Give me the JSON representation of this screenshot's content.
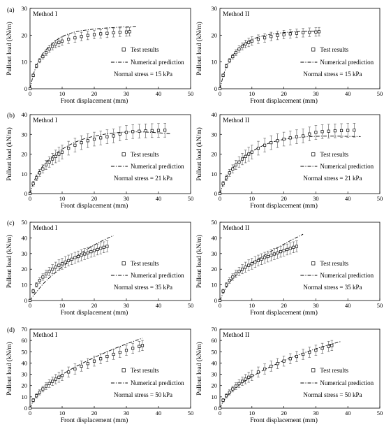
{
  "chart_data": [
    {
      "type": "scatter",
      "panel_label": "(a)",
      "title": "Method I",
      "xlabel": "Front displacement (mm)",
      "ylabel": "Pullout load (kN/m)",
      "xlim": [
        0,
        50
      ],
      "ylim": [
        0,
        30
      ],
      "xticks": [
        0,
        10,
        20,
        30,
        40,
        50
      ],
      "yticks": [
        0,
        10,
        20,
        30
      ],
      "legend": [
        "Test results",
        "Numerical prediction"
      ],
      "legend_position": "right",
      "annotation": "Normal stress = 15 kPa",
      "test_results": {
        "x": [
          0,
          1,
          2,
          3,
          4,
          5,
          6,
          7,
          8,
          9,
          10,
          12,
          14,
          16,
          18,
          20,
          22,
          24,
          26,
          28,
          30,
          31
        ],
        "y": [
          0,
          5,
          8.5,
          10.5,
          12,
          13.5,
          14.8,
          15.8,
          16.7,
          17.3,
          17.8,
          18.5,
          19,
          19.5,
          19.9,
          20.2,
          20.5,
          20.7,
          20.9,
          21.1,
          21.2,
          21.3
        ],
        "error": 1.6
      },
      "numerical_prediction": {
        "x": [
          0,
          1,
          2,
          3,
          4,
          6,
          8,
          10,
          12,
          14,
          16,
          18,
          20,
          24,
          28,
          31,
          33
        ],
        "y": [
          0,
          5.2,
          8.8,
          11.2,
          13.2,
          16,
          18,
          19.5,
          20.5,
          21.2,
          21.7,
          22,
          22.3,
          22.7,
          23,
          23.2,
          23.3
        ]
      }
    },
    {
      "type": "scatter",
      "panel_label": "",
      "title": "Method II",
      "xlabel": "Front displacement (mm)",
      "ylabel": "Pullout load (kN/m)",
      "xlim": [
        0,
        50
      ],
      "ylim": [
        0,
        30
      ],
      "xticks": [
        0,
        10,
        20,
        30,
        40,
        50
      ],
      "yticks": [
        0,
        10,
        20,
        30
      ],
      "legend": [
        "Test results",
        "Numerical prediction"
      ],
      "legend_position": "right",
      "annotation": "Normal stress = 15 kPa",
      "test_results": {
        "x": [
          0,
          1,
          2,
          3,
          4,
          5,
          6,
          7,
          8,
          9,
          10,
          12,
          14,
          16,
          18,
          20,
          22,
          24,
          26,
          28,
          30,
          31
        ],
        "y": [
          0,
          5,
          8.5,
          10.5,
          12,
          13.5,
          14.8,
          15.8,
          16.7,
          17.3,
          17.8,
          18.5,
          19,
          19.5,
          19.9,
          20.2,
          20.5,
          20.7,
          20.9,
          21.1,
          21.2,
          21.3
        ],
        "error": 1.6
      },
      "numerical_prediction": {
        "x": [
          0,
          1,
          2,
          3,
          4,
          6,
          8,
          10,
          12,
          14,
          16,
          18,
          20,
          24,
          28,
          31
        ],
        "y": [
          0,
          4.8,
          8.2,
          10.6,
          12.5,
          15.2,
          17.1,
          18.4,
          19.3,
          19.9,
          20.4,
          20.7,
          21,
          21.3,
          21.5,
          21.6
        ]
      }
    },
    {
      "type": "scatter",
      "panel_label": "(b)",
      "title": "Method I",
      "xlabel": "Front displacement (mm)",
      "ylabel": "Pullout load (kN/m)",
      "xlim": [
        0,
        50
      ],
      "ylim": [
        0,
        40
      ],
      "xticks": [
        0,
        10,
        20,
        30,
        40,
        50
      ],
      "yticks": [
        0,
        10,
        20,
        30,
        40
      ],
      "legend": [
        "Test results",
        "Numerical prediction"
      ],
      "legend_position": "right",
      "annotation": "Normal stress = 21 kPa",
      "test_results": {
        "x": [
          0,
          1,
          2,
          3,
          4,
          5,
          6,
          7,
          8,
          9,
          10,
          12,
          14,
          16,
          18,
          20,
          22,
          24,
          26,
          28,
          30,
          32,
          34,
          36,
          38,
          40,
          42
        ],
        "y": [
          0,
          5,
          8,
          10.5,
          12.5,
          14.5,
          16,
          17.5,
          18.8,
          20,
          21,
          23,
          24.5,
          25.8,
          26.8,
          27.6,
          28.2,
          28.8,
          29.2,
          30.2,
          31,
          31.4,
          31.6,
          31.8,
          31.9,
          32,
          32.1
        ],
        "error": 3.5
      },
      "numerical_prediction": {
        "x": [
          0,
          1,
          2,
          3,
          4,
          6,
          8,
          10,
          12,
          14,
          16,
          18,
          20,
          24,
          28,
          32,
          36,
          40,
          44
        ],
        "y": [
          0,
          5.5,
          9,
          11.8,
          14,
          17.5,
          20.3,
          22.5,
          24.4,
          26,
          27.3,
          28.3,
          29.1,
          30.3,
          31,
          31.3,
          31.2,
          30.8,
          30.3
        ]
      }
    },
    {
      "type": "scatter",
      "panel_label": "",
      "title": "Method II",
      "xlabel": "Front displacement (mm)",
      "ylabel": "Pullout load (kN/m)",
      "xlim": [
        0,
        50
      ],
      "ylim": [
        0,
        40
      ],
      "xticks": [
        0,
        10,
        20,
        30,
        40,
        50
      ],
      "yticks": [
        0,
        10,
        20,
        30,
        40
      ],
      "legend": [
        "Test results",
        "Numerical prediction"
      ],
      "legend_position": "right",
      "annotation": "Normal stress = 21 kPa",
      "test_results": {
        "x": [
          0,
          1,
          2,
          3,
          4,
          5,
          6,
          7,
          8,
          9,
          10,
          12,
          14,
          16,
          18,
          20,
          22,
          24,
          26,
          28,
          30,
          32,
          34,
          36,
          38,
          40,
          42
        ],
        "y": [
          0,
          5,
          8,
          10.5,
          12.5,
          14.5,
          16,
          17.5,
          18.8,
          20,
          21,
          23,
          24.5,
          25.8,
          26.8,
          27.6,
          28.2,
          28.8,
          29.2,
          30.2,
          31,
          31.4,
          31.6,
          31.8,
          31.9,
          32,
          32.1
        ],
        "error": 3.5
      },
      "numerical_prediction": {
        "x": [
          0,
          1,
          2,
          3,
          4,
          6,
          8,
          10,
          12,
          14,
          16,
          18,
          20,
          24,
          28,
          32,
          36,
          40,
          44
        ],
        "y": [
          0,
          5,
          8.2,
          10.8,
          13,
          16.4,
          19.2,
          21.4,
          23.2,
          24.7,
          25.9,
          26.8,
          27.5,
          28.4,
          28.9,
          29.1,
          29.1,
          29,
          28.9
        ]
      }
    },
    {
      "type": "scatter",
      "panel_label": "(c)",
      "title": "Method I",
      "xlabel": "Front displacement (mm)",
      "ylabel": "Pullout load (kN/m)",
      "xlim": [
        0,
        50
      ],
      "ylim": [
        0,
        50
      ],
      "xticks": [
        0,
        10,
        20,
        30,
        40,
        50
      ],
      "yticks": [
        0,
        10,
        20,
        30,
        40,
        50
      ],
      "legend": [
        "Test results",
        "Numerical prediction"
      ],
      "legend_position": "right",
      "annotation": "Normal stress = 35 kPa",
      "test_results": {
        "x": [
          0,
          1,
          2,
          3,
          4,
          5,
          6,
          7,
          8,
          9,
          10,
          11,
          12,
          13,
          14,
          15,
          16,
          17,
          18,
          19,
          20,
          21,
          22,
          23,
          24
        ],
        "y": [
          0,
          6,
          10,
          12.8,
          15,
          17,
          18.6,
          20,
          21.3,
          22.5,
          23.5,
          24.6,
          25.5,
          26.4,
          27.3,
          28.1,
          28.9,
          29.7,
          30.4,
          31.2,
          31.9,
          32.6,
          33.3,
          34,
          34.6
        ],
        "error": 3.5
      },
      "numerical_prediction": {
        "x": [
          0,
          1,
          2,
          3,
          4,
          6,
          8,
          10,
          12,
          14,
          16,
          18,
          20,
          22,
          24,
          26
        ],
        "y": [
          0,
          3,
          5.5,
          8,
          10.5,
          14.5,
          18,
          21.5,
          24.5,
          27.5,
          30.5,
          33,
          35.5,
          37.7,
          39.7,
          41.5
        ]
      }
    },
    {
      "type": "scatter",
      "panel_label": "",
      "title": "Method II",
      "xlabel": "Front displacement (mm)",
      "ylabel": "Pullout load (kN/m)",
      "xlim": [
        0,
        50
      ],
      "ylim": [
        0,
        50
      ],
      "xticks": [
        0,
        10,
        20,
        30,
        40,
        50
      ],
      "yticks": [
        0,
        10,
        20,
        30,
        40,
        50
      ],
      "legend": [
        "Test results",
        "Numerical prediction"
      ],
      "legend_position": "right",
      "annotation": "Normal stress = 35 kPa",
      "test_results": {
        "x": [
          0,
          1,
          2,
          3,
          4,
          5,
          6,
          7,
          8,
          9,
          10,
          11,
          12,
          13,
          14,
          15,
          16,
          17,
          18,
          19,
          20,
          21,
          22,
          23,
          24
        ],
        "y": [
          0,
          6,
          10,
          12.8,
          15,
          17,
          18.6,
          20,
          21.3,
          22.5,
          23.5,
          24.6,
          25.5,
          26.4,
          27.3,
          28.1,
          28.9,
          29.7,
          30.4,
          31.2,
          31.9,
          32.6,
          33.3,
          34,
          34.6
        ],
        "error": 3.5
      },
      "numerical_prediction": {
        "x": [
          0,
          1,
          2,
          3,
          4,
          6,
          8,
          10,
          12,
          14,
          16,
          18,
          20,
          22,
          24,
          26
        ],
        "y": [
          0,
          4.8,
          8.5,
          11.5,
          14,
          18,
          21.2,
          24,
          26.6,
          29,
          31.4,
          33.7,
          36,
          38.2,
          40.3,
          42.3
        ]
      }
    },
    {
      "type": "scatter",
      "panel_label": "(d)",
      "title": "Method I",
      "xlabel": "Front displacement (mm)",
      "ylabel": "Pullout load (kN/m)",
      "xlim": [
        0,
        50
      ],
      "ylim": [
        0,
        70
      ],
      "xticks": [
        0,
        10,
        20,
        30,
        40,
        50
      ],
      "yticks": [
        0,
        10,
        20,
        30,
        40,
        50,
        60,
        70
      ],
      "legend": [
        "Test results",
        "Numerical prediction"
      ],
      "legend_position": "right",
      "annotation": "Normal stress = 50 kPa",
      "test_results": {
        "x": [
          0,
          1,
          2,
          3,
          4,
          5,
          6,
          7,
          8,
          9,
          10,
          12,
          14,
          16,
          18,
          20,
          22,
          24,
          26,
          28,
          30,
          32,
          34,
          35
        ],
        "y": [
          0,
          7,
          11,
          14,
          17,
          19.5,
          21.8,
          23.8,
          25.7,
          27.4,
          29,
          32,
          34.7,
          37.2,
          39.5,
          41.7,
          43.8,
          45.8,
          47.7,
          49.5,
          51.3,
          53,
          54.7,
          55.5
        ],
        "error": 4.5
      },
      "numerical_prediction": {
        "x": [
          0,
          1,
          2,
          3,
          4,
          6,
          8,
          10,
          12,
          14,
          16,
          18,
          20,
          22,
          24,
          26,
          28,
          30,
          32,
          34,
          35
        ],
        "y": [
          0,
          6.5,
          10.5,
          13.8,
          16.8,
          21.8,
          26,
          29.8,
          33.2,
          36.4,
          39.4,
          42.2,
          44.9,
          47.5,
          50,
          52.4,
          54.7,
          56.9,
          59,
          61,
          62
        ]
      }
    },
    {
      "type": "scatter",
      "panel_label": "",
      "title": "Method II",
      "xlabel": "Front displacement (mm)",
      "ylabel": "Pullout load (kN/m)",
      "xlim": [
        0,
        50
      ],
      "ylim": [
        0,
        70
      ],
      "xticks": [
        0,
        10,
        20,
        30,
        40,
        50
      ],
      "yticks": [
        0,
        10,
        20,
        30,
        40,
        50,
        60,
        70
      ],
      "legend": [
        "Test results",
        "Numerical prediction"
      ],
      "legend_position": "right",
      "annotation": "Normal stress = 50 kPa",
      "test_results": {
        "x": [
          0,
          1,
          2,
          3,
          4,
          5,
          6,
          7,
          8,
          9,
          10,
          12,
          14,
          16,
          18,
          20,
          22,
          24,
          26,
          28,
          30,
          32,
          34,
          35
        ],
        "y": [
          0,
          7,
          11,
          14,
          17,
          19.5,
          21.8,
          23.8,
          25.7,
          27.4,
          29,
          32,
          34.7,
          37.2,
          39.5,
          41.7,
          43.8,
          45.8,
          47.7,
          49.5,
          51.3,
          53,
          54.7,
          55.5
        ],
        "error": 4.5
      },
      "numerical_prediction": {
        "x": [
          0,
          1,
          2,
          3,
          4,
          6,
          8,
          10,
          12,
          14,
          16,
          18,
          20,
          22,
          24,
          26,
          28,
          30,
          32,
          34,
          36,
          38
        ],
        "y": [
          0,
          6,
          9.8,
          12.9,
          15.7,
          20.4,
          24.4,
          28,
          31.2,
          34.2,
          37,
          39.6,
          42.1,
          44.4,
          46.6,
          48.7,
          50.7,
          52.6,
          54.4,
          56.1,
          57.7,
          59.2
        ]
      }
    }
  ]
}
